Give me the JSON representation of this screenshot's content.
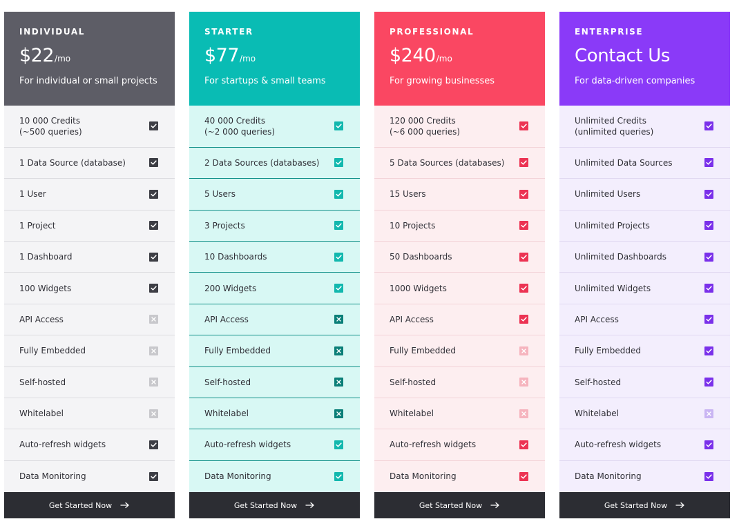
{
  "plans": [
    {
      "id": "individual",
      "name": "INDIVIDUAL",
      "price": "$22",
      "period": "/mo",
      "tagline": "For individual or small projects",
      "cta": "Get Started Now",
      "colors": {
        "header": "#5d5d66",
        "body": "#f4f4f6",
        "line": "#dcdce0",
        "check": "#3d3e45",
        "off": "#c8c8cc"
      },
      "features": [
        {
          "line1": "10 000 Credits",
          "line2": "(~500 queries)",
          "included": true
        },
        {
          "line1": "1 Data Source (database)",
          "included": true
        },
        {
          "line1": "1 User",
          "included": true
        },
        {
          "line1": "1 Project",
          "included": true
        },
        {
          "line1": "1 Dashboard",
          "included": true
        },
        {
          "line1": "100 Widgets",
          "included": true
        },
        {
          "line1": "API Access",
          "included": false
        },
        {
          "line1": "Fully Embedded",
          "included": false
        },
        {
          "line1": "Self-hosted",
          "included": false
        },
        {
          "line1": "Whitelabel",
          "included": false
        },
        {
          "line1": "Auto-refresh widgets",
          "included": true
        },
        {
          "line1": "Data Monitoring",
          "included": true
        }
      ]
    },
    {
      "id": "starter",
      "name": "STARTER",
      "price": "$77",
      "period": "/mo",
      "tagline": "For startups & small teams",
      "cta": "Get Started Now",
      "colors": {
        "header": "#09bcb4",
        "body": "#d8f8f4",
        "line": "#0e8f87",
        "check": "#12b8ae",
        "off": "#0b7f78"
      },
      "features": [
        {
          "line1": "40 000 Credits",
          "line2": "(~2 000 queries)",
          "included": true
        },
        {
          "line1": "2 Data Sources (databases)",
          "included": true
        },
        {
          "line1": "5 Users",
          "included": true
        },
        {
          "line1": "3 Projects",
          "included": true
        },
        {
          "line1": "10 Dashboards",
          "included": true
        },
        {
          "line1": "200 Widgets",
          "included": true
        },
        {
          "line1": "API Access",
          "included": false
        },
        {
          "line1": "Fully Embedded",
          "included": false
        },
        {
          "line1": "Self-hosted",
          "included": false
        },
        {
          "line1": "Whitelabel",
          "included": false
        },
        {
          "line1": "Auto-refresh widgets",
          "included": true
        },
        {
          "line1": "Data Monitoring",
          "included": true
        }
      ]
    },
    {
      "id": "professional",
      "name": "PROFESSIONAL",
      "price": "$240",
      "period": "/mo",
      "tagline": "For growing businesses",
      "cta": "Get Started Now",
      "colors": {
        "header": "#fa4762",
        "body": "#fdeef0",
        "line": "#f3d3d8",
        "check": "#ec3353",
        "off": "#f6b4be"
      },
      "features": [
        {
          "line1": "120 000 Credits",
          "line2": "(~6 000 queries)",
          "included": true
        },
        {
          "line1": "5 Data Sources (databases)",
          "included": true
        },
        {
          "line1": "15 Users",
          "included": true
        },
        {
          "line1": "10 Projects",
          "included": true
        },
        {
          "line1": "50 Dashboards",
          "included": true
        },
        {
          "line1": "1000 Widgets",
          "included": true
        },
        {
          "line1": "API Access",
          "included": true
        },
        {
          "line1": "Fully Embedded",
          "included": false
        },
        {
          "line1": "Self-hosted",
          "included": false
        },
        {
          "line1": "Whitelabel",
          "included": false
        },
        {
          "line1": "Auto-refresh widgets",
          "included": true
        },
        {
          "line1": "Data Monitoring",
          "included": true
        }
      ]
    },
    {
      "id": "enterprise",
      "name": "ENTERPRISE",
      "price": "Contact Us",
      "period": "",
      "tagline": "For data-driven companies",
      "cta": "Get Started Now",
      "colors": {
        "header": "#8a3af8",
        "body": "#f3eefd",
        "line": "#e0d8f1",
        "check": "#7a30ea",
        "off": "#c9b5f3"
      },
      "features": [
        {
          "line1": "Unlimited Credits",
          "line2": "(unlimited queries)",
          "included": true
        },
        {
          "line1": "Unlimited Data Sources",
          "included": true
        },
        {
          "line1": "Unlimited Users",
          "included": true
        },
        {
          "line1": "Unlimited Projects",
          "included": true
        },
        {
          "line1": "Unlimited Dashboards",
          "included": true
        },
        {
          "line1": "Unlimited Widgets",
          "included": true
        },
        {
          "line1": "API Access",
          "included": true
        },
        {
          "line1": "Fully Embedded",
          "included": true
        },
        {
          "line1": "Self-hosted",
          "included": true
        },
        {
          "line1": "Whitelabel",
          "included": false
        },
        {
          "line1": "Auto-refresh widgets",
          "included": true
        },
        {
          "line1": "Data Monitoring",
          "included": true
        }
      ]
    }
  ]
}
